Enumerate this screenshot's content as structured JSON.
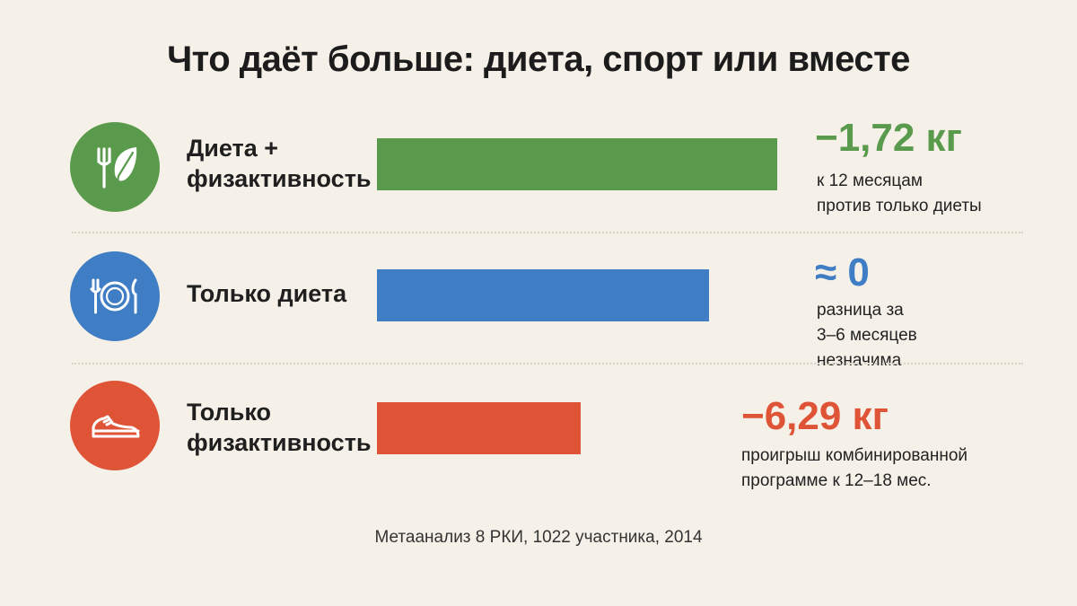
{
  "title": "Что даёт больше: диета, спорт или вместе",
  "source": "Метаанализ 8 РКИ, 1022 участника, 2014",
  "chart_data": {
    "type": "bar",
    "orientation": "horizontal",
    "grid": false,
    "categories": [
      "Диета + физактивность",
      "Только диета",
      "Только физактивность"
    ],
    "rows": [
      {
        "label_lines": [
          "Диета +",
          "физактивность"
        ],
        "icon": "fork-leaf-icon",
        "color": "#5a9a4c",
        "bar_fraction": 1.0,
        "value_text": "−1,72 кг",
        "value_color": "#5a9a4c",
        "note_lines": [
          "к 12 месяцам",
          "против только диеты"
        ]
      },
      {
        "label_lines": [
          "Только диета"
        ],
        "icon": "plate-fork-knife-icon",
        "color": "#3f7ec4",
        "bar_fraction": 0.83,
        "value_text": "≈ 0",
        "value_color": "#3f7ec4",
        "note_lines": [
          "разница за",
          "3–6 месяцев",
          "незначима"
        ]
      },
      {
        "label_lines": [
          "Только",
          "физактивность"
        ],
        "icon": "sneaker-icon",
        "color": "#df5437",
        "bar_fraction": 0.51,
        "value_text": "−6,29 кг",
        "value_color": "#df5437",
        "note_lines": [
          "проигрыш комбинированной",
          "программе к 12–18 мес."
        ]
      }
    ]
  }
}
